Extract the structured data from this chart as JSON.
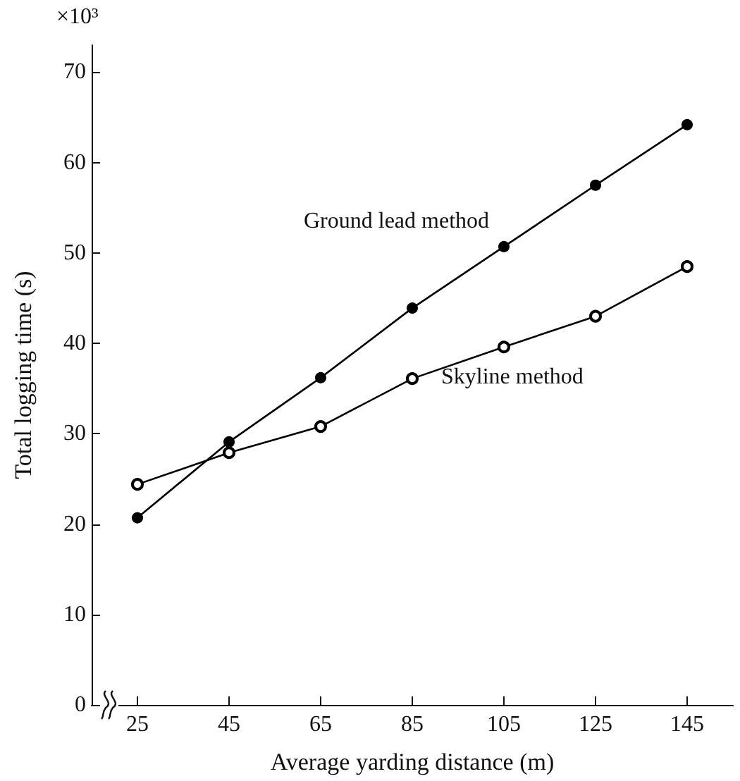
{
  "chart_data": {
    "type": "line",
    "xlabel": "Average yarding distance (m)",
    "ylabel": "Total logging time (s)",
    "annotations": [
      "×10³"
    ],
    "x": [
      25,
      45,
      65,
      85,
      105,
      125,
      145
    ],
    "series": [
      {
        "name": "Ground lead method",
        "color": "#000000",
        "values": [
          20.7,
          29.1,
          36.2,
          43.9,
          50.7,
          57.5,
          64.2
        ]
      },
      {
        "name": "Skyline method",
        "color": "#000000",
        "values": [
          24.4,
          27.9,
          30.8,
          36.1,
          39.6,
          43.0,
          48.5
        ]
      }
    ],
    "xlim": [
      15,
      155
    ],
    "xticks": [
      25,
      45,
      65,
      85,
      105,
      125,
      145
    ],
    "ylim": [
      0,
      73
    ],
    "yticks": [
      0,
      10,
      20,
      30,
      40,
      50,
      60,
      70
    ],
    "grid": false,
    "legend": false,
    "marker": "circle",
    "line_style": "solid"
  }
}
